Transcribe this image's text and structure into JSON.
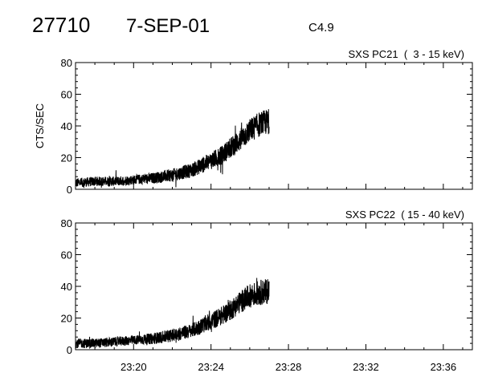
{
  "header": {
    "event_id": "27710",
    "date": "7-SEP-01",
    "flare_class": "C4.9"
  },
  "chart_data": [
    {
      "type": "line",
      "title": "SXS PC21  (  3 - 15 keV)",
      "ylabel": "CTS/SEC",
      "xlabel": "",
      "x_unit": "minutes after 23:00",
      "ylim": [
        0,
        80
      ],
      "yticks": [
        0,
        20,
        40,
        60,
        80
      ],
      "xlim": [
        17,
        37.5
      ],
      "xticks": [
        20,
        24,
        28,
        32,
        36
      ],
      "xtick_labels": [
        "23:20",
        "23:24",
        "23:28",
        "23:32",
        "23:36"
      ],
      "grid": false,
      "series": [
        {
          "x": [
            17.0,
            18.0,
            19.0,
            20.0,
            21.0,
            22.0,
            23.0,
            23.5,
            24.0,
            24.5,
            25.0,
            25.5,
            26.0,
            26.5,
            27.0
          ],
          "y": [
            4,
            5,
            5,
            6,
            7,
            9,
            12,
            15,
            18,
            21,
            26,
            31,
            37,
            41,
            43
          ],
          "noise": [
            3,
            3,
            3,
            3,
            3.5,
            4,
            4.5,
            5,
            5.5,
            6,
            6.5,
            7,
            7.5,
            8,
            8
          ]
        }
      ]
    },
    {
      "type": "line",
      "title": "SXS PC22  ( 15 - 40 keV)",
      "ylabel": "",
      "xlabel": "",
      "x_unit": "minutes after 23:00",
      "ylim": [
        0,
        80
      ],
      "yticks": [
        0,
        20,
        40,
        60,
        80
      ],
      "xlim": [
        17,
        37.5
      ],
      "xticks": [
        20,
        24,
        28,
        32,
        36
      ],
      "xtick_labels": [
        "23:20",
        "23:24",
        "23:28",
        "23:32",
        "23:36"
      ],
      "grid": false,
      "series": [
        {
          "x": [
            17.0,
            18.0,
            19.0,
            20.0,
            21.0,
            22.0,
            23.0,
            23.5,
            24.0,
            24.5,
            25.0,
            25.5,
            26.0,
            26.5,
            27.0
          ],
          "y": [
            4,
            4,
            5,
            6,
            7,
            9,
            12,
            15,
            18,
            21,
            25,
            30,
            34,
            36,
            37
          ],
          "noise": [
            3,
            3,
            3,
            3,
            3.5,
            4,
            4.5,
            5,
            5.5,
            6,
            6.5,
            7,
            7.5,
            8,
            8
          ]
        }
      ]
    }
  ]
}
